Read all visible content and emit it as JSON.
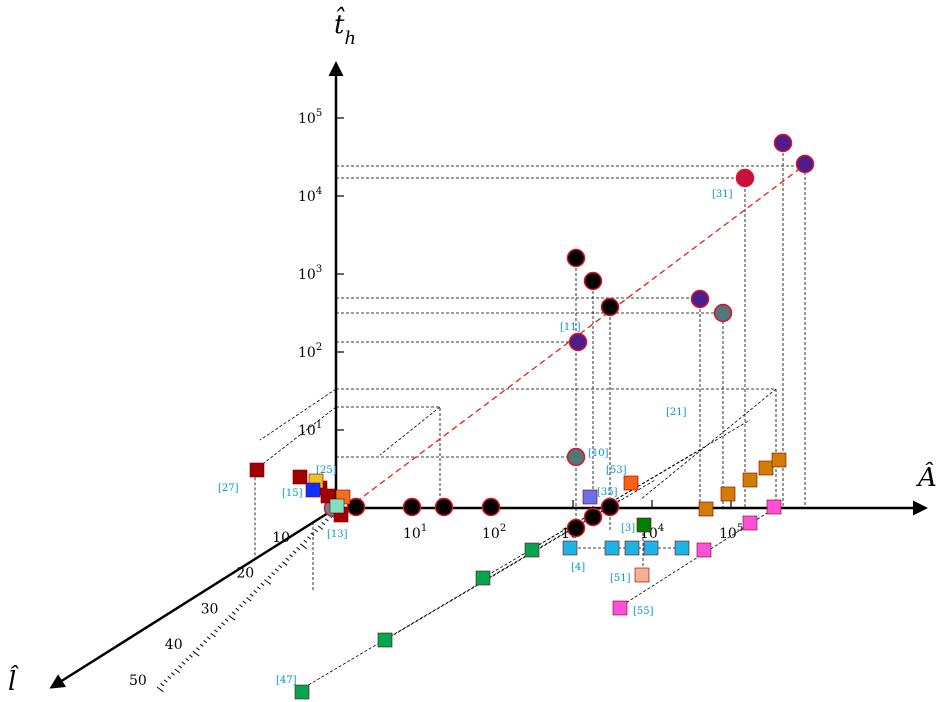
{
  "chart_data": {
    "type": "scatter",
    "axes": {
      "x": {
        "title": "Â",
        "scale": "log",
        "tick_labels": [
          "10^1",
          "10^2",
          "10^3",
          "10^4",
          "10^5"
        ]
      },
      "y": {
        "title": "t̂_h",
        "scale": "log",
        "tick_labels": [
          "10^1",
          "10^2",
          "10^3",
          "10^4",
          "10^5"
        ]
      },
      "z": {
        "title": "l̂",
        "scale": "linear",
        "tick_labels": [
          "10",
          "20",
          "30",
          "40",
          "50"
        ]
      }
    },
    "reference_labels": [
      "[27]",
      "[25]",
      "[15]",
      "[13]",
      "[11]",
      "[10]",
      "[53]",
      "[35]",
      "[3]",
      "[4]",
      "[51]",
      "[55]",
      "[21]",
      "[31]",
      "[47]"
    ],
    "colors": {
      "circle_black": "#000000",
      "circle_purple": "#4b1e8c",
      "circle_crimson": "#c8103c",
      "circle_teal": "#507878",
      "square_green": "#00a650",
      "square_cyan": "#1fb4e6",
      "square_magenta": "#ff50dc",
      "square_orange": "#d27d00",
      "square_darkred": "#a00000",
      "marker_edge": "#e0102a",
      "label_color": "#0096c8",
      "diagonal": "#e02020"
    }
  }
}
